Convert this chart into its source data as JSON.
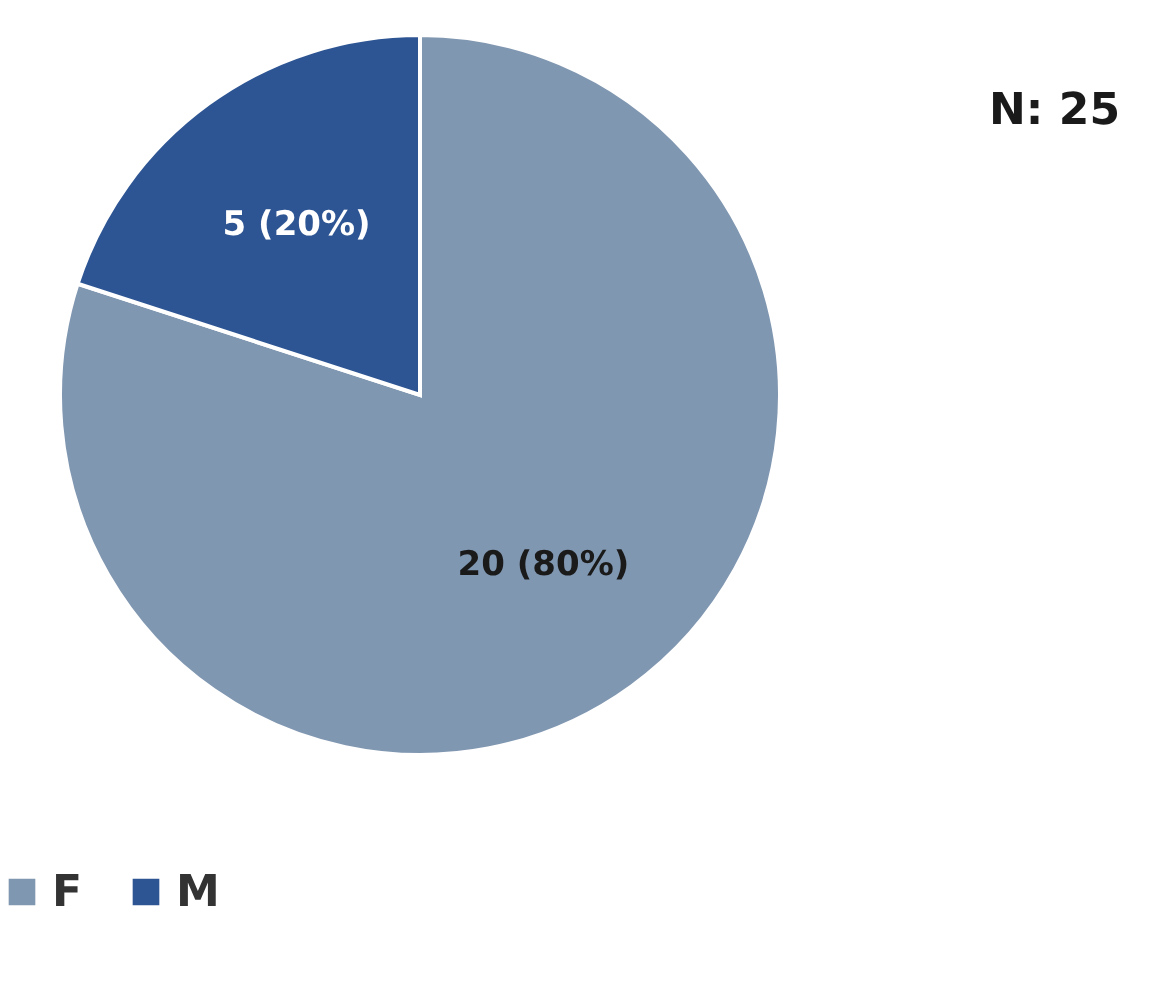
{
  "chart_data": {
    "type": "pie",
    "categories": [
      "F",
      "M"
    ],
    "values": [
      20,
      5
    ],
    "colors": [
      "#8097b1",
      "#2e5593"
    ],
    "value_labels": [
      "20 (80%)",
      "5 (20%)"
    ],
    "annotations": [
      "N: 25"
    ],
    "legend": "bottom"
  }
}
